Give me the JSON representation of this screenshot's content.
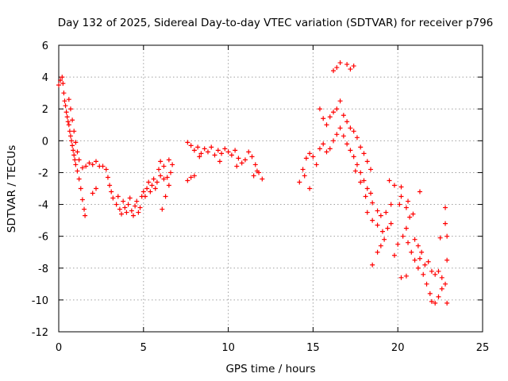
{
  "chart_data": {
    "type": "scatter",
    "title": "Day 132 of 2025, Sidereal Day-to-day VTEC variation (SDTVAR) for receiver p796",
    "xlabel": "GPS time / hours",
    "ylabel": "SDTVAR / TECUs",
    "xlim": [
      0,
      25
    ],
    "ylim": [
      -12,
      6
    ],
    "xticks": [
      0,
      5,
      10,
      15,
      20,
      25
    ],
    "yticks": [
      -12,
      -10,
      -8,
      -6,
      -4,
      -2,
      0,
      2,
      4,
      6
    ],
    "grid": true,
    "marker": "+",
    "series": [
      {
        "name": "SDTVAR",
        "color": "#ff0000",
        "points": [
          [
            0.0,
            3.5
          ],
          [
            0.1,
            3.8
          ],
          [
            0.2,
            4.0
          ],
          [
            0.25,
            3.6
          ],
          [
            0.3,
            3.0
          ],
          [
            0.35,
            2.5
          ],
          [
            0.4,
            2.2
          ],
          [
            0.45,
            1.8
          ],
          [
            0.5,
            1.5
          ],
          [
            0.55,
            1.2
          ],
          [
            0.6,
            1.0
          ],
          [
            0.65,
            0.6
          ],
          [
            0.7,
            0.3
          ],
          [
            0.75,
            0.0
          ],
          [
            0.8,
            -0.3
          ],
          [
            0.85,
            -0.6
          ],
          [
            0.9,
            -0.9
          ],
          [
            0.95,
            -1.2
          ],
          [
            1.0,
            -1.5
          ],
          [
            1.1,
            -1.9
          ],
          [
            1.2,
            -2.4
          ],
          [
            1.3,
            -3.0
          ],
          [
            1.4,
            -3.7
          ],
          [
            1.5,
            -4.3
          ],
          [
            1.55,
            -4.7
          ],
          [
            0.6,
            2.6
          ],
          [
            0.7,
            2.0
          ],
          [
            0.8,
            1.3
          ],
          [
            0.9,
            0.6
          ],
          [
            1.0,
            -0.1
          ],
          [
            1.1,
            -0.7
          ],
          [
            1.2,
            -1.2
          ],
          [
            1.4,
            -1.7
          ],
          [
            1.6,
            -1.6
          ],
          [
            1.8,
            -1.4
          ],
          [
            2.0,
            -1.5
          ],
          [
            2.2,
            -1.3
          ],
          [
            2.4,
            -1.6
          ],
          [
            2.2,
            -3.0
          ],
          [
            2.0,
            -3.3
          ],
          [
            2.6,
            -1.6
          ],
          [
            2.8,
            -1.8
          ],
          [
            2.9,
            -2.3
          ],
          [
            3.0,
            -2.8
          ],
          [
            3.1,
            -3.2
          ],
          [
            3.2,
            -3.6
          ],
          [
            3.4,
            -4.0
          ],
          [
            3.5,
            -3.5
          ],
          [
            3.6,
            -4.3
          ],
          [
            3.7,
            -4.6
          ],
          [
            3.8,
            -3.8
          ],
          [
            3.9,
            -4.2
          ],
          [
            4.0,
            -4.5
          ],
          [
            4.1,
            -4.0
          ],
          [
            4.2,
            -3.6
          ],
          [
            4.3,
            -4.4
          ],
          [
            4.4,
            -4.7
          ],
          [
            4.5,
            -4.1
          ],
          [
            4.6,
            -3.8
          ],
          [
            4.7,
            -4.5
          ],
          [
            4.8,
            -4.2
          ],
          [
            4.9,
            -3.5
          ],
          [
            5.0,
            -3.2
          ],
          [
            5.1,
            -3.5
          ],
          [
            5.2,
            -3.0
          ],
          [
            5.3,
            -2.6
          ],
          [
            5.4,
            -3.2
          ],
          [
            5.5,
            -2.8
          ],
          [
            5.6,
            -2.4
          ],
          [
            5.7,
            -3.0
          ],
          [
            5.8,
            -2.6
          ],
          [
            5.9,
            -1.8
          ],
          [
            6.0,
            -2.2
          ],
          [
            6.2,
            -2.4
          ],
          [
            6.4,
            -2.3
          ],
          [
            6.6,
            -2.0
          ],
          [
            6.0,
            -1.3
          ],
          [
            6.2,
            -1.6
          ],
          [
            6.1,
            -4.3
          ],
          [
            6.3,
            -3.5
          ],
          [
            6.5,
            -2.8
          ],
          [
            6.7,
            -1.5
          ],
          [
            6.5,
            -1.2
          ],
          [
            7.6,
            -2.5
          ],
          [
            7.8,
            -2.3
          ],
          [
            8.0,
            -2.2
          ],
          [
            7.6,
            -0.1
          ],
          [
            7.8,
            -0.3
          ],
          [
            8.0,
            -0.6
          ],
          [
            8.2,
            -0.4
          ],
          [
            8.4,
            -0.8
          ],
          [
            8.6,
            -0.5
          ],
          [
            8.8,
            -0.7
          ],
          [
            9.0,
            -0.4
          ],
          [
            9.2,
            -0.9
          ],
          [
            9.4,
            -0.6
          ],
          [
            9.6,
            -0.8
          ],
          [
            9.8,
            -0.5
          ],
          [
            10.0,
            -0.7
          ],
          [
            10.2,
            -0.9
          ],
          [
            10.4,
            -0.6
          ],
          [
            10.6,
            -1.1
          ],
          [
            10.8,
            -1.4
          ],
          [
            11.0,
            -1.2
          ],
          [
            11.2,
            -0.7
          ],
          [
            11.4,
            -1.0
          ],
          [
            11.6,
            -1.5
          ],
          [
            11.8,
            -2.0
          ],
          [
            12.0,
            -2.4
          ],
          [
            11.7,
            -1.9
          ],
          [
            8.3,
            -1.0
          ],
          [
            9.5,
            -1.3
          ],
          [
            10.5,
            -1.6
          ],
          [
            11.5,
            -2.2
          ],
          [
            14.2,
            -2.6
          ],
          [
            14.4,
            -1.8
          ],
          [
            14.6,
            -1.1
          ],
          [
            14.8,
            -0.8
          ],
          [
            15.0,
            -1.0
          ],
          [
            14.5,
            -2.2
          ],
          [
            14.8,
            -3.0
          ],
          [
            15.2,
            -1.5
          ],
          [
            15.4,
            -0.5
          ],
          [
            15.6,
            -0.2
          ],
          [
            15.8,
            -0.7
          ],
          [
            16.0,
            -0.5
          ],
          [
            16.2,
            0.0
          ],
          [
            16.4,
            0.4
          ],
          [
            16.6,
            0.8
          ],
          [
            16.8,
            0.3
          ],
          [
            17.0,
            -0.2
          ],
          [
            17.2,
            -0.6
          ],
          [
            17.4,
            -1.0
          ],
          [
            17.6,
            -1.5
          ],
          [
            17.8,
            -2.0
          ],
          [
            18.0,
            -2.5
          ],
          [
            18.2,
            -3.0
          ],
          [
            18.4,
            -3.3
          ],
          [
            15.4,
            2.0
          ],
          [
            15.6,
            1.4
          ],
          [
            15.8,
            1.0
          ],
          [
            16.0,
            1.5
          ],
          [
            16.2,
            1.8
          ],
          [
            16.4,
            2.0
          ],
          [
            16.6,
            2.5
          ],
          [
            16.8,
            1.6
          ],
          [
            17.0,
            1.2
          ],
          [
            17.2,
            0.8
          ],
          [
            17.4,
            0.6
          ],
          [
            17.6,
            0.2
          ],
          [
            17.8,
            -0.4
          ],
          [
            18.0,
            -0.8
          ],
          [
            18.2,
            -1.3
          ],
          [
            18.4,
            -1.8
          ],
          [
            16.2,
            4.4
          ],
          [
            16.4,
            4.6
          ],
          [
            16.6,
            4.9
          ],
          [
            17.0,
            4.8
          ],
          [
            17.2,
            4.5
          ],
          [
            17.4,
            4.7
          ],
          [
            17.5,
            -1.9
          ],
          [
            17.8,
            -2.6
          ],
          [
            18.1,
            -3.5
          ],
          [
            18.5,
            -3.9
          ],
          [
            18.8,
            -4.4
          ],
          [
            19.0,
            -4.7
          ],
          [
            19.3,
            -4.5
          ],
          [
            19.6,
            -4.0
          ],
          [
            18.2,
            -4.5
          ],
          [
            18.5,
            -5.0
          ],
          [
            18.8,
            -5.3
          ],
          [
            19.1,
            -5.7
          ],
          [
            19.4,
            -5.5
          ],
          [
            19.6,
            -5.2
          ],
          [
            18.5,
            -7.8
          ],
          [
            18.8,
            -7.0
          ],
          [
            19.0,
            -6.6
          ],
          [
            19.2,
            -6.2
          ],
          [
            19.5,
            -2.5
          ],
          [
            19.8,
            -2.8
          ],
          [
            20.1,
            -4.0
          ],
          [
            20.2,
            -3.5
          ],
          [
            20.0,
            -6.5
          ],
          [
            20.3,
            -6.0
          ],
          [
            20.5,
            -5.5
          ],
          [
            20.6,
            -6.4
          ],
          [
            20.8,
            -7.0
          ],
          [
            21.0,
            -7.5
          ],
          [
            21.2,
            -8.0
          ],
          [
            21.3,
            -7.4
          ],
          [
            21.5,
            -8.4
          ],
          [
            21.7,
            -9.0
          ],
          [
            21.9,
            -9.6
          ],
          [
            22.0,
            -10.1
          ],
          [
            22.2,
            -10.2
          ],
          [
            22.4,
            -9.8
          ],
          [
            22.6,
            -9.3
          ],
          [
            22.8,
            -9.0
          ],
          [
            22.9,
            -10.2
          ],
          [
            22.9,
            -7.5
          ],
          [
            22.9,
            -6.0
          ],
          [
            22.8,
            -4.2
          ],
          [
            22.6,
            -8.6
          ],
          [
            22.4,
            -8.2
          ],
          [
            22.2,
            -8.4
          ],
          [
            22.0,
            -8.2
          ],
          [
            21.8,
            -7.6
          ],
          [
            21.6,
            -7.8
          ],
          [
            21.4,
            -7.0
          ],
          [
            21.2,
            -6.6
          ],
          [
            21.0,
            -6.2
          ],
          [
            20.9,
            -4.6
          ],
          [
            20.7,
            -4.8
          ],
          [
            20.5,
            -4.2
          ],
          [
            21.3,
            -3.2
          ],
          [
            20.5,
            -8.5
          ],
          [
            20.2,
            -8.6
          ],
          [
            19.8,
            -7.2
          ],
          [
            20.2,
            -2.9
          ],
          [
            20.6,
            -3.8
          ],
          [
            22.5,
            -6.1
          ],
          [
            22.8,
            -5.2
          ]
        ]
      }
    ]
  }
}
